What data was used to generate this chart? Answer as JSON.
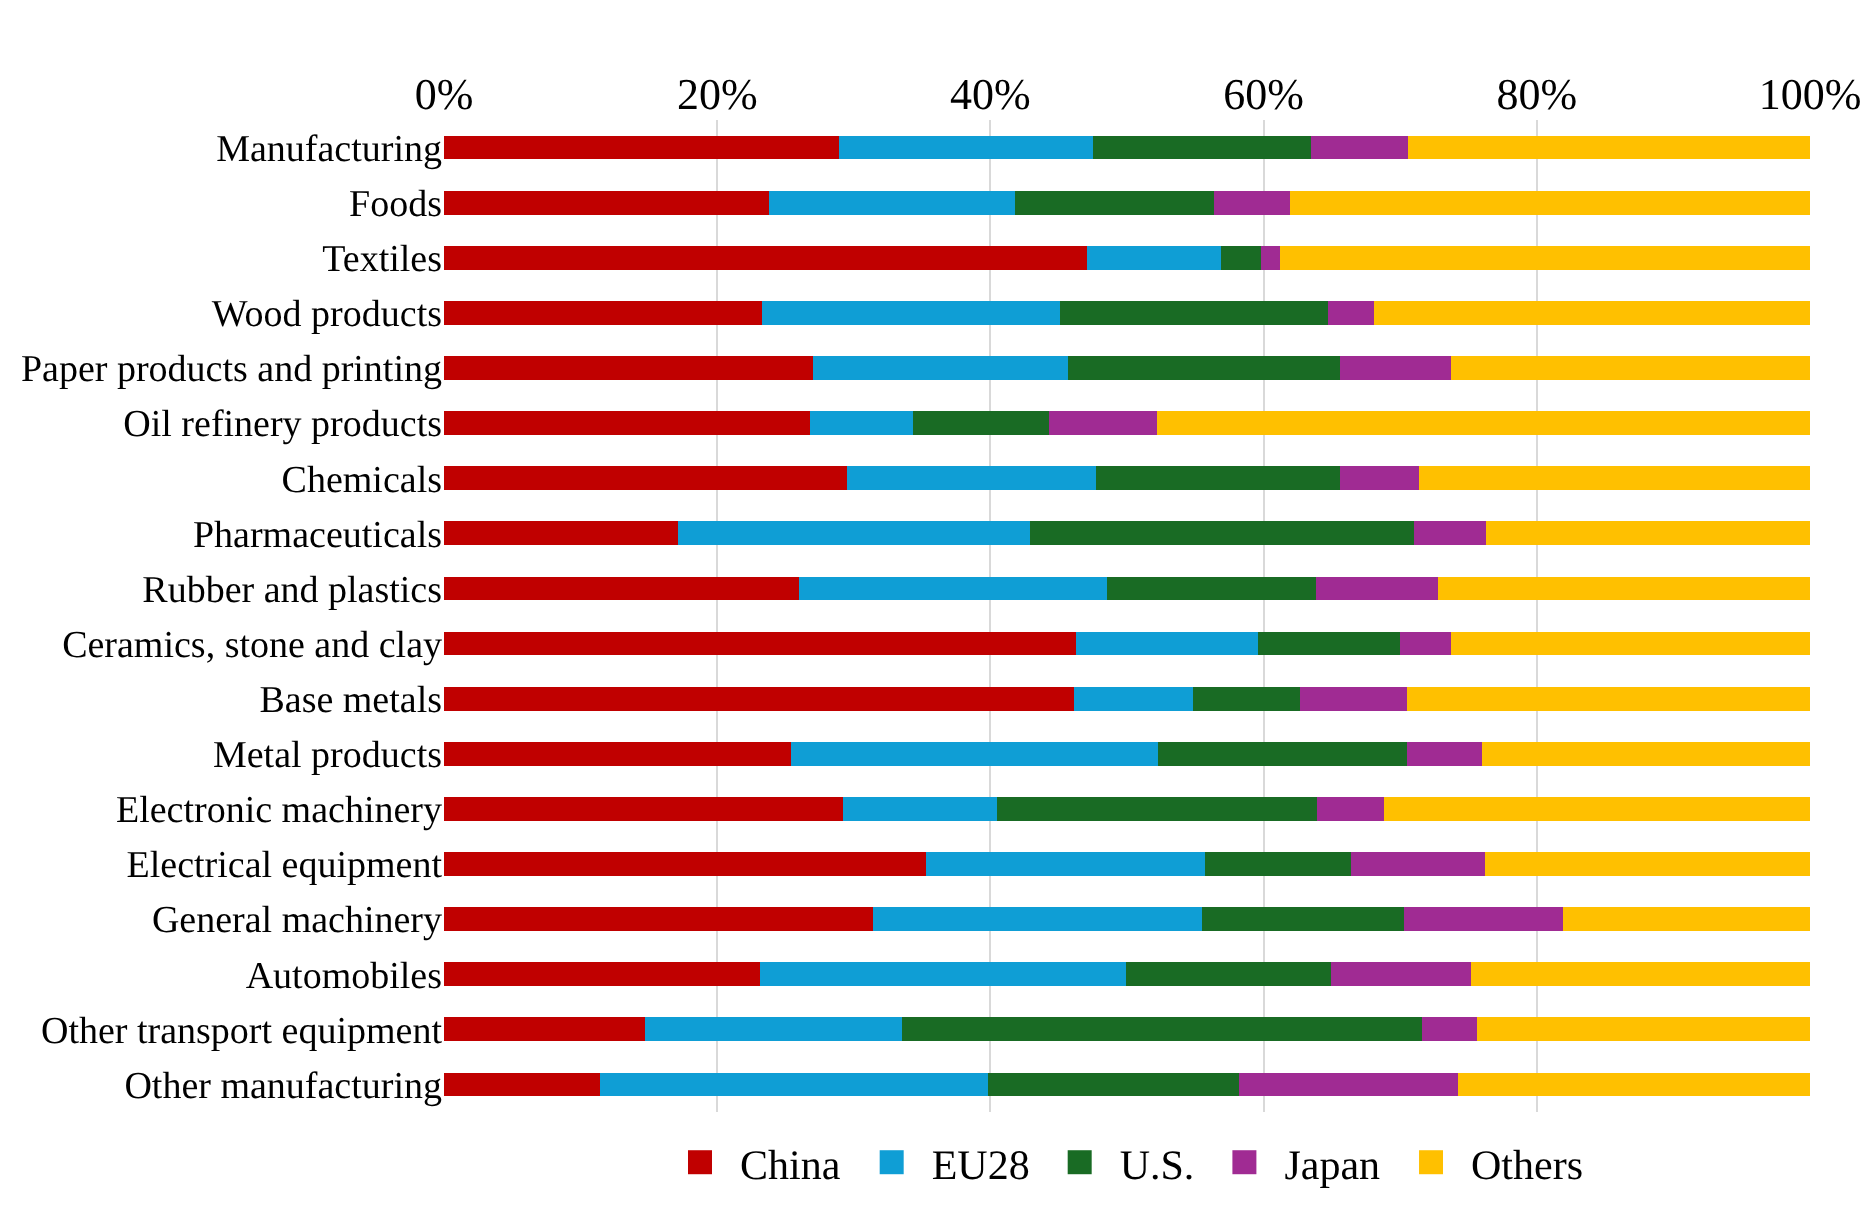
{
  "chart_data": {
    "type": "bar",
    "orientation": "horizontal",
    "stacked": true,
    "categories": [
      "Manufacturing",
      "Foods",
      "Textiles",
      "Wood products",
      "Paper products and printing",
      "Oil refinery products",
      "Chemicals",
      "Pharmaceuticals",
      "Rubber and plastics",
      "Ceramics, stone and clay",
      "Base metals",
      "Metal products",
      "Electronic machinery",
      "Electrical equipment",
      "General machinery",
      "Automobiles",
      "Other transport equipment",
      "Other manufacturing"
    ],
    "series": [
      {
        "name": "China",
        "color": "#c00000",
        "values": [
          28.9,
          23.8,
          47.1,
          23.3,
          27.0,
          26.8,
          29.5,
          17.1,
          26.0,
          46.3,
          46.1,
          25.4,
          29.2,
          35.3,
          31.4,
          23.1,
          14.7,
          11.4
        ]
      },
      {
        "name": "EU28",
        "color": "#0f9ed5",
        "values": [
          18.6,
          18.0,
          9.8,
          21.8,
          18.7,
          7.5,
          18.2,
          25.8,
          22.5,
          13.3,
          8.7,
          26.9,
          11.3,
          20.4,
          24.1,
          26.8,
          18.8,
          28.4
        ]
      },
      {
        "name": "U.S.",
        "color": "#196b24",
        "values": [
          16.0,
          14.6,
          2.9,
          19.6,
          19.9,
          10.0,
          17.9,
          28.1,
          15.3,
          10.4,
          7.9,
          18.2,
          23.4,
          10.7,
          14.8,
          15.0,
          38.1,
          18.4
        ]
      },
      {
        "name": "Japan",
        "color": "#a02b93",
        "values": [
          7.1,
          5.5,
          1.4,
          3.4,
          8.1,
          7.9,
          5.8,
          5.3,
          9.0,
          3.7,
          7.8,
          5.5,
          4.9,
          9.8,
          11.6,
          10.3,
          4.0,
          16.0
        ]
      },
      {
        "name": "Others",
        "color": "#ffc000",
        "values": [
          29.4,
          38.1,
          38.8,
          31.9,
          26.3,
          47.8,
          28.6,
          23.7,
          27.2,
          26.3,
          29.5,
          24.0,
          31.2,
          23.8,
          18.1,
          24.8,
          24.4,
          25.8
        ]
      }
    ],
    "xlim": [
      0,
      100
    ],
    "xticks": [
      {
        "value": 0,
        "label": "0%"
      },
      {
        "value": 20,
        "label": "20%"
      },
      {
        "value": 40,
        "label": "40%"
      },
      {
        "value": 60,
        "label": "60%"
      },
      {
        "value": 80,
        "label": "80%"
      },
      {
        "value": 100,
        "label": "100%"
      }
    ],
    "grid": "x",
    "legend": "bottom"
  }
}
